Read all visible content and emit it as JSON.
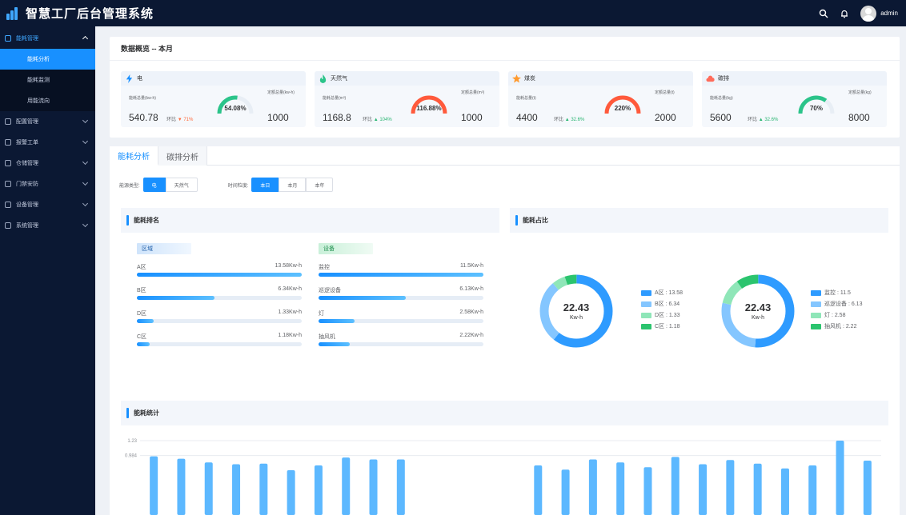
{
  "header": {
    "title": "智慧工厂后台管理系统",
    "username": "admin"
  },
  "sidebar": {
    "menus": [
      {
        "label": "能耗管理",
        "open": true,
        "children": [
          {
            "label": "能耗分析",
            "active": true
          },
          {
            "label": "能耗监测",
            "active": false
          },
          {
            "label": "用能流向",
            "active": false
          }
        ]
      },
      {
        "label": "配置管理",
        "open": false
      },
      {
        "label": "报警工单",
        "open": false
      },
      {
        "label": "仓储管理",
        "open": false
      },
      {
        "label": "门禁安防",
        "open": false
      },
      {
        "label": "设备管理",
        "open": false
      },
      {
        "label": "系统管理",
        "open": false
      }
    ]
  },
  "overview": {
    "title": "数据概览 -- 本月",
    "cards": [
      {
        "name": "电",
        "icon": "lightning-icon",
        "total_label": "能耗总量(kw-h)",
        "total": "540.78",
        "yoy_label": "环比",
        "yoy": "71%",
        "yoy_dir": "down",
        "gauge": "54.08%",
        "gauge_fraction": 0.54,
        "gauge_color": "#2bc48a",
        "quota_label": "定额总量(kw-h)",
        "quota": "1000"
      },
      {
        "name": "天然气",
        "icon": "flame-icon",
        "total_label": "能耗总量(m³)",
        "total": "1168.8",
        "yoy_label": "环比",
        "yoy": "104%",
        "yoy_dir": "up",
        "gauge": "116.88%",
        "gauge_fraction": 1.0,
        "gauge_color": "#ff5a3c",
        "quota_label": "定额总量(m³)",
        "quota": "1000"
      },
      {
        "name": "煤炭",
        "icon": "star-icon",
        "total_label": "能耗总量(t)",
        "total": "4400",
        "yoy_label": "环比",
        "yoy": "32.6%",
        "yoy_dir": "up",
        "gauge": "220%",
        "gauge_fraction": 1.0,
        "gauge_color": "#ff5a3c",
        "quota_label": "定额总量(t)",
        "quota": "2000"
      },
      {
        "name": "碳排",
        "icon": "cloud-icon",
        "total_label": "能耗总量(kg)",
        "total": "5600",
        "yoy_label": "环比",
        "yoy": "32.6%",
        "yoy_dir": "up",
        "gauge": "70%",
        "gauge_fraction": 0.7,
        "gauge_color": "#2bc48a",
        "quota_label": "定额总量(kg)",
        "quota": "8000"
      }
    ]
  },
  "analysis": {
    "tabs": [
      {
        "label": "能耗分析",
        "active": true
      },
      {
        "label": "碳排分析",
        "active": false
      }
    ],
    "energy_type": {
      "label": "能源类型:",
      "options": [
        {
          "label": "电",
          "active": true
        },
        {
          "label": "天然气",
          "active": false
        }
      ]
    },
    "time_granularity": {
      "label": "时间粒度:",
      "options": [
        {
          "label": "本日",
          "active": true
        },
        {
          "label": "本月",
          "active": false
        },
        {
          "label": "本年",
          "active": false
        }
      ]
    },
    "ranking": {
      "title": "能耗排名",
      "area_tag": "区域",
      "device_tag": "设备",
      "areas": [
        {
          "name": "A区",
          "value": "13.58Kw-h",
          "fraction": 1.0
        },
        {
          "name": "B区",
          "value": "6.34Kw-h",
          "fraction": 0.47
        },
        {
          "name": "D区",
          "value": "1.33Kw-h",
          "fraction": 0.1
        },
        {
          "name": "C区",
          "value": "1.18Kw-h",
          "fraction": 0.08
        }
      ],
      "devices": [
        {
          "name": "监控",
          "value": "11.5Kw-h",
          "fraction": 1.0
        },
        {
          "name": "巡逻设备",
          "value": "6.13Kw-h",
          "fraction": 0.53
        },
        {
          "name": "灯",
          "value": "2.58Kw-h",
          "fraction": 0.22
        },
        {
          "name": "抽风机",
          "value": "2.22Kw-h",
          "fraction": 0.19
        }
      ]
    },
    "share": {
      "title": "能耗占比",
      "donuts": [
        {
          "total": "22.43",
          "unit": "Kw-h",
          "items": [
            {
              "label": "A区 : 13.58",
              "value": 13.58,
              "color": "#2e9bff"
            },
            {
              "label": "B区 : 6.34",
              "value": 6.34,
              "color": "#84c6ff"
            },
            {
              "label": "D区 : 1.33",
              "value": 1.33,
              "color": "#8fe6b8"
            },
            {
              "label": "C区 : 1.18",
              "value": 1.18,
              "color": "#2bc46e"
            }
          ]
        },
        {
          "total": "22.43",
          "unit": "Kw-h",
          "items": [
            {
              "label": "监控 : 11.5",
              "value": 11.5,
              "color": "#2e9bff"
            },
            {
              "label": "巡逻设备 : 6.13",
              "value": 6.13,
              "color": "#84c6ff"
            },
            {
              "label": "灯 : 2.58",
              "value": 2.58,
              "color": "#8fe6b8"
            },
            {
              "label": "抽风机 : 2.22",
              "value": 2.22,
              "color": "#2bc46e"
            }
          ]
        }
      ]
    },
    "stats": {
      "title": "能耗统计"
    }
  },
  "chart_data": {
    "type": "bar",
    "yticks": [
      "1.23",
      "0.984"
    ],
    "ylim": [
      0,
      1.23
    ],
    "bar_color": "#5cb8ff",
    "values": [
      0.97,
      0.93,
      0.87,
      0.84,
      0.85,
      0.74,
      0.82,
      0.95,
      0.92,
      0.92,
      0,
      0,
      0,
      0,
      0.82,
      0.75,
      0.92,
      0.87,
      0.79,
      0.96,
      0.84,
      0.91,
      0.85,
      0.77,
      0.82,
      1.23,
      0.9
    ]
  }
}
